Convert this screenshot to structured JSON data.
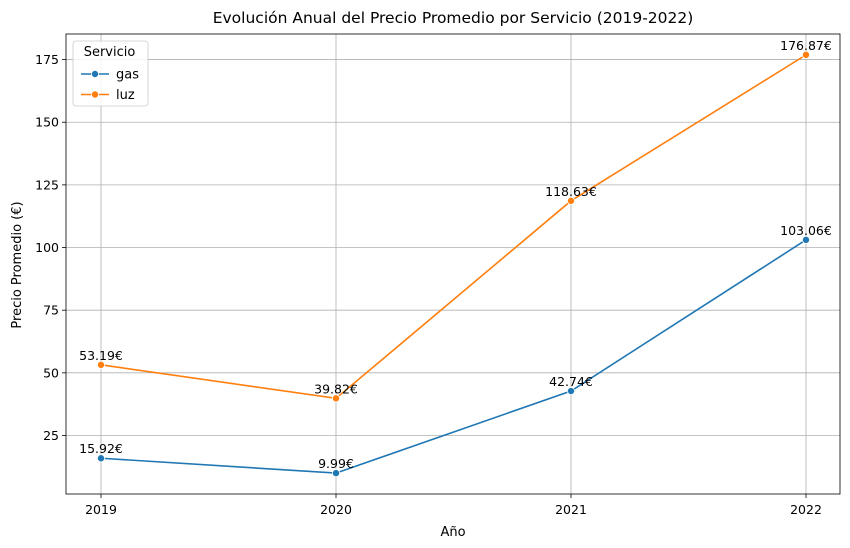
{
  "chart_data": {
    "type": "line",
    "title": "Evolución Anual del Precio Promedio por Servicio (2019-2022)",
    "xlabel": "Año",
    "ylabel": "Precio Promedio (€)",
    "categories": [
      "2019",
      "2020",
      "2021",
      "2022"
    ],
    "ylim": [
      1.65,
      185.2
    ],
    "yticks": [
      25,
      50,
      75,
      100,
      125,
      150,
      175
    ],
    "grid": true,
    "legend": {
      "title": "Servicio",
      "placement": "top-left"
    },
    "series": [
      {
        "name": "gas",
        "color": "#1f77b4",
        "marker": "circle",
        "values": [
          15.92,
          9.99,
          42.74,
          103.06
        ],
        "labels": [
          "15.92€",
          "9.99€",
          "42.74€",
          "103.06€"
        ]
      },
      {
        "name": "luz",
        "color": "#ff7f0e",
        "marker": "circle",
        "values": [
          53.19,
          39.82,
          118.63,
          176.87
        ],
        "labels": [
          "53.19€",
          "39.82€",
          "118.63€",
          "176.87€"
        ]
      }
    ]
  }
}
